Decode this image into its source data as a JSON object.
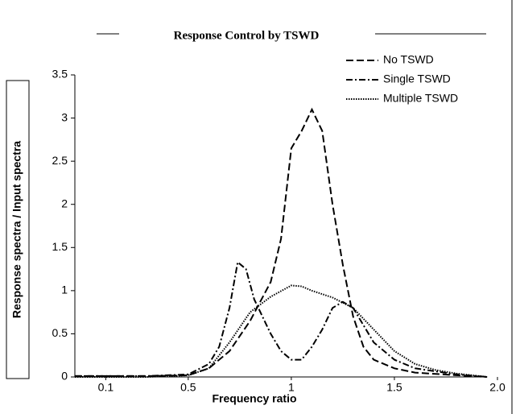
{
  "chart_data": {
    "type": "line",
    "title": "Response Control by TSWD",
    "xlabel": "Frequency ratio",
    "ylabel": "Response spectra / Input spectra",
    "xlim": [
      -0.05,
      2.0
    ],
    "ylim": [
      0,
      3.5
    ],
    "xticks": [
      0.1,
      0.5,
      1,
      1.5,
      {
        "value": 2.0,
        "label": "2.0"
      }
    ],
    "yticks": [
      0,
      0.5,
      1,
      1.5,
      2,
      2.5,
      3,
      3.5
    ],
    "legend": "upper right",
    "series": [
      {
        "name": "No TSWD",
        "color": "#000000",
        "dash": "dashed",
        "x": [
          -0.05,
          0.1,
          0.3,
          0.5,
          0.6,
          0.7,
          0.8,
          0.9,
          0.95,
          1.0,
          1.05,
          1.1,
          1.15,
          1.2,
          1.25,
          1.3,
          1.35,
          1.4,
          1.5,
          1.6,
          1.8,
          1.95
        ],
        "values": [
          0.01,
          0.01,
          0.01,
          0.02,
          0.1,
          0.3,
          0.65,
          1.1,
          1.6,
          2.65,
          2.85,
          3.1,
          2.85,
          2.0,
          1.3,
          0.7,
          0.35,
          0.2,
          0.1,
          0.05,
          0.02,
          0.0
        ]
      },
      {
        "name": "Single TSWD",
        "color": "#000000",
        "dash": "dashdot",
        "x": [
          -0.05,
          0.1,
          0.3,
          0.5,
          0.6,
          0.65,
          0.7,
          0.74,
          0.78,
          0.82,
          0.9,
          0.95,
          1.0,
          1.05,
          1.1,
          1.15,
          1.2,
          1.25,
          1.3,
          1.35,
          1.4,
          1.5,
          1.6,
          1.8,
          1.95
        ],
        "values": [
          0.01,
          0.01,
          0.01,
          0.03,
          0.15,
          0.35,
          0.8,
          1.33,
          1.25,
          0.9,
          0.5,
          0.3,
          0.2,
          0.2,
          0.35,
          0.55,
          0.8,
          0.87,
          0.8,
          0.6,
          0.4,
          0.2,
          0.1,
          0.03,
          0.0
        ]
      },
      {
        "name": "Multiple TSWD",
        "color": "#000000",
        "dash": "dotted",
        "x": [
          -0.05,
          0.1,
          0.3,
          0.5,
          0.6,
          0.7,
          0.8,
          0.9,
          1.0,
          1.05,
          1.1,
          1.2,
          1.3,
          1.4,
          1.5,
          1.6,
          1.7,
          1.8,
          1.95
        ],
        "values": [
          0.0,
          0.0,
          0.0,
          0.02,
          0.1,
          0.4,
          0.75,
          0.93,
          1.06,
          1.05,
          1.0,
          0.92,
          0.8,
          0.55,
          0.3,
          0.15,
          0.08,
          0.04,
          0.0
        ]
      }
    ]
  }
}
